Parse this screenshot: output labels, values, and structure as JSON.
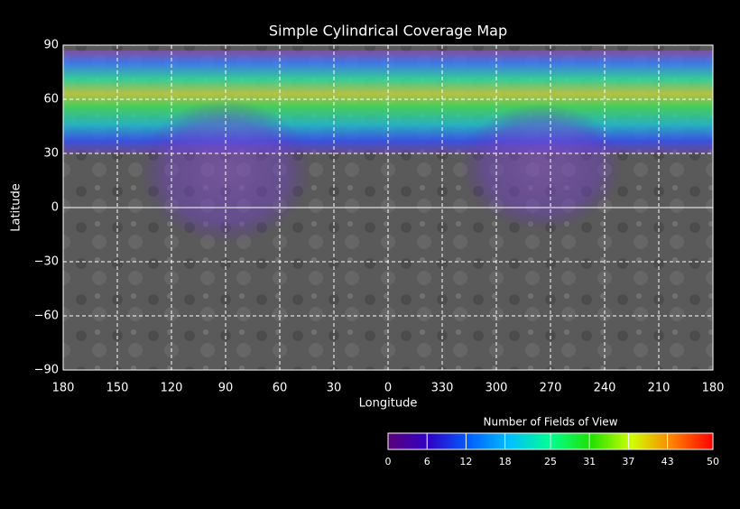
{
  "map": {
    "title": "Simple Cylindrical Coverage Map",
    "x_label": "Longitude",
    "y_label": "Latitude",
    "xlim": [
      180,
      -180
    ],
    "ylim": [
      -90,
      90
    ],
    "xticks": [
      180,
      150,
      120,
      90,
      60,
      30,
      0,
      {
        "value": -30,
        "label": "330"
      },
      {
        "value": -60,
        "label": "300"
      },
      {
        "value": -90,
        "label": "270"
      },
      {
        "value": -120,
        "label": "240"
      },
      {
        "value": -150,
        "label": "210"
      },
      {
        "value": -180,
        "label": "180"
      }
    ],
    "yticks": [
      {
        "value": -90,
        "label": "−90"
      },
      {
        "value": -60,
        "label": "−60"
      },
      {
        "value": -30,
        "label": "−30"
      },
      0,
      30,
      60,
      90
    ],
    "grid": true,
    "colorbar": {
      "label": "Number of Fields of View",
      "lim": [
        0,
        50
      ],
      "ticks": [
        0,
        6,
        12,
        18,
        25,
        31,
        37,
        43,
        50
      ]
    }
  }
}
